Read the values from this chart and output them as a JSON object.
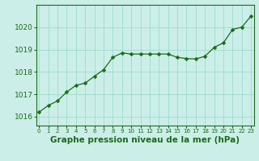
{
  "x": [
    0,
    1,
    2,
    3,
    4,
    5,
    6,
    7,
    8,
    9,
    10,
    11,
    12,
    13,
    14,
    15,
    16,
    17,
    18,
    19,
    20,
    21,
    22,
    23
  ],
  "y": [
    1016.2,
    1016.5,
    1016.7,
    1017.1,
    1017.4,
    1017.5,
    1017.8,
    1018.1,
    1018.65,
    1018.85,
    1018.8,
    1018.8,
    1018.8,
    1018.8,
    1018.8,
    1018.65,
    1018.6,
    1018.58,
    1018.7,
    1019.1,
    1019.3,
    1019.9,
    1020.0,
    1020.5
  ],
  "line_color": "#1a6b1a",
  "marker": "D",
  "marker_size": 2.5,
  "bg_color": "#cceee8",
  "grid_color": "#99ddcc",
  "xlabel": "Graphe pression niveau de la mer (hPa)",
  "xlabel_fontsize": 7.5,
  "ylabel_ticks": [
    1016,
    1017,
    1018,
    1019,
    1020
  ],
  "ylim": [
    1015.6,
    1021.0
  ],
  "xlim": [
    -0.3,
    23.3
  ],
  "tick_color": "#1a6b1a",
  "label_color": "#1a6b1a",
  "axis_color": "#1a6b1a",
  "ytick_fontsize": 6.5,
  "xtick_fontsize": 5.0
}
